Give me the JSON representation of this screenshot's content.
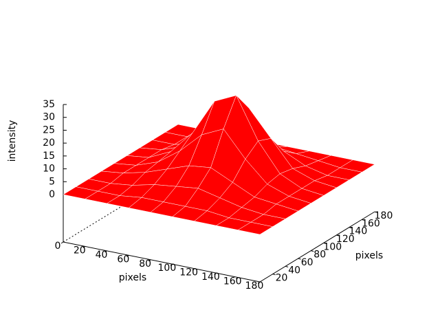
{
  "chart_data": {
    "type": "surface",
    "xlabel": "pixels",
    "ylabel": "pixels",
    "zlabel": "intensity",
    "color": "#ff0000",
    "xlim": [
      0,
      180
    ],
    "ylim": [
      0,
      180
    ],
    "zlim": [
      0,
      35
    ],
    "xticks": [
      0,
      20,
      40,
      60,
      80,
      100,
      120,
      140,
      160,
      180
    ],
    "yticks": [
      20,
      40,
      60,
      80,
      100,
      120,
      140,
      160,
      180
    ],
    "zticks": [
      0,
      5,
      10,
      15,
      20,
      25,
      30,
      35
    ],
    "x": [
      0,
      20,
      40,
      60,
      80,
      100,
      120,
      140,
      160,
      180
    ],
    "y": [
      0,
      20,
      40,
      60,
      80,
      100,
      120,
      140,
      160,
      180
    ],
    "z": [
      [
        0,
        0,
        0,
        0,
        0,
        0,
        0,
        0,
        0,
        0
      ],
      [
        0,
        0,
        0,
        1,
        1,
        1,
        1,
        0,
        0,
        0
      ],
      [
        0,
        0,
        1,
        3,
        4,
        5,
        3,
        1,
        0,
        0
      ],
      [
        0,
        1,
        3,
        6,
        9,
        10,
        6,
        2,
        1,
        0
      ],
      [
        0,
        1,
        4,
        10,
        18,
        22,
        12,
        4,
        1,
        0
      ],
      [
        0,
        1,
        5,
        14,
        28,
        32,
        16,
        5,
        1,
        0
      ],
      [
        0,
        1,
        4,
        12,
        20,
        24,
        14,
        4,
        1,
        0
      ],
      [
        0,
        0,
        2,
        6,
        10,
        12,
        6,
        2,
        0,
        0
      ],
      [
        0,
        0,
        1,
        2,
        3,
        3,
        2,
        1,
        0,
        0
      ],
      [
        0,
        0,
        0,
        0,
        0,
        0,
        0,
        0,
        0,
        0
      ]
    ]
  }
}
